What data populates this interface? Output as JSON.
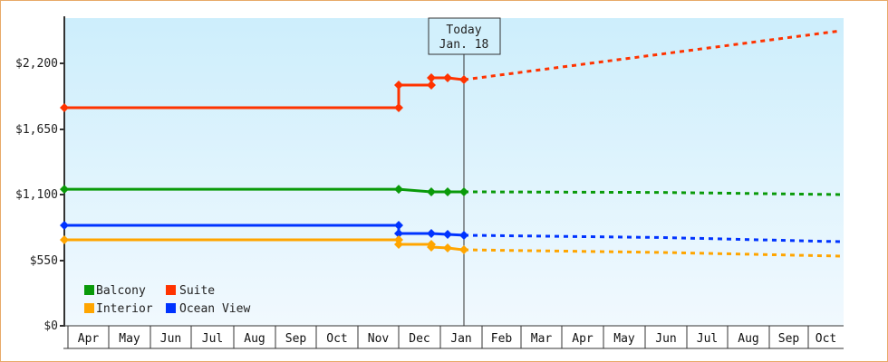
{
  "chart_data": {
    "type": "line",
    "title": "",
    "xlabel": "",
    "ylabel": "",
    "ylim": [
      0,
      2580
    ],
    "y_ticks": [
      {
        "value": 0,
        "label": "$0"
      },
      {
        "value": 550,
        "label": "$550"
      },
      {
        "value": 1100,
        "label": "$1,100"
      },
      {
        "value": 1650,
        "label": "$1,650"
      },
      {
        "value": 2200,
        "label": "$2,200"
      }
    ],
    "x_months": [
      "Apr",
      "May",
      "Jun",
      "Jul",
      "Aug",
      "Sep",
      "Oct",
      "Nov",
      "Dec",
      "Jan",
      "Feb",
      "Mar",
      "Apr",
      "May",
      "Jun",
      "Jul",
      "Aug",
      "Sep",
      "Oct"
    ],
    "today_marker": {
      "line1": "Today",
      "line2": "Jan. 18"
    },
    "grid": false,
    "legend_position": "lower-left inside",
    "legend": [
      {
        "name": "Balcony",
        "color": "#0a9a0a"
      },
      {
        "name": "Suite",
        "color": "#ff3300"
      },
      {
        "name": "Interior",
        "color": "#ffa500"
      },
      {
        "name": "Ocean View",
        "color": "#0033ff"
      }
    ],
    "series": [
      {
        "name": "Suite",
        "color": "#ff3300",
        "history": [
          {
            "date": "Apr 1",
            "value": 1828
          },
          {
            "date": "Nov 25",
            "value": 1828
          },
          {
            "date": "Nov 25",
            "value": 2018
          },
          {
            "date": "Dec 20",
            "value": 2018
          },
          {
            "date": "Dec 20",
            "value": 2079
          },
          {
            "date": "Jan 1",
            "value": 2079
          },
          {
            "date": "Jan 18",
            "value": 2063
          }
        ],
        "forecast": [
          {
            "date": "Jan 18",
            "value": 2063
          },
          {
            "date": "Oct end",
            "value": 2473
          }
        ]
      },
      {
        "name": "Balcony",
        "color": "#0a9a0a",
        "history": [
          {
            "date": "Apr 1",
            "value": 1145
          },
          {
            "date": "Nov 25",
            "value": 1145
          },
          {
            "date": "Dec 20",
            "value": 1123
          },
          {
            "date": "Jan 1",
            "value": 1123
          },
          {
            "date": "Jan 18",
            "value": 1123
          }
        ],
        "forecast": [
          {
            "date": "Jan 18",
            "value": 1123
          },
          {
            "date": "Jun",
            "value": 1118
          },
          {
            "date": "Oct end",
            "value": 1100
          }
        ]
      },
      {
        "name": "Ocean View",
        "color": "#0033ff",
        "history": [
          {
            "date": "Apr 1",
            "value": 842
          },
          {
            "date": "Nov 25",
            "value": 842
          },
          {
            "date": "Nov 25",
            "value": 774
          },
          {
            "date": "Dec 20",
            "value": 774
          },
          {
            "date": "Jan 1",
            "value": 766
          },
          {
            "date": "Jan 18",
            "value": 759
          }
        ],
        "forecast": [
          {
            "date": "Jan 18",
            "value": 759
          },
          {
            "date": "Jun",
            "value": 740
          },
          {
            "date": "Oct end",
            "value": 705
          }
        ]
      },
      {
        "name": "Interior",
        "color": "#ffa500",
        "history": [
          {
            "date": "Apr 1",
            "value": 721
          },
          {
            "date": "Nov 25",
            "value": 721
          },
          {
            "date": "Nov 25",
            "value": 683
          },
          {
            "date": "Dec 20",
            "value": 683
          },
          {
            "date": "Dec 20",
            "value": 660
          },
          {
            "date": "Jan 1",
            "value": 652
          },
          {
            "date": "Jan 18",
            "value": 637
          }
        ],
        "forecast": [
          {
            "date": "Jan 18",
            "value": 637
          },
          {
            "date": "Jun",
            "value": 615
          },
          {
            "date": "Oct end",
            "value": 584
          }
        ]
      }
    ]
  }
}
